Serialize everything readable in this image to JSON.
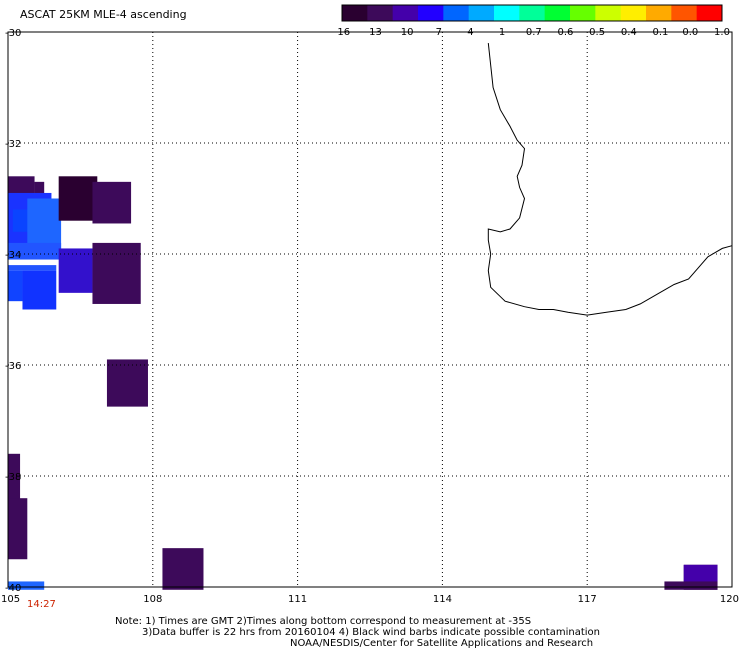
{
  "title": "ASCAT 25KM MLE-4 ascending",
  "colorbar": {
    "colors": [
      "#2a0030",
      "#3d0a5a",
      "#4400aa",
      "#2200ff",
      "#0066ff",
      "#00aaff",
      "#00ffff",
      "#00ff99",
      "#00ff33",
      "#66ff00",
      "#ccff00",
      "#ffee00",
      "#ffaa00",
      "#ff5500",
      "#ff0000"
    ],
    "labels": [
      "-16",
      "-13",
      "-10",
      "-7",
      "-4",
      "-1",
      "-0.7",
      "-0.6",
      "-0.5",
      "-0.4",
      "-0.1",
      "0.0",
      "1.0"
    ]
  },
  "axes": {
    "x_ticks": [
      "105",
      "108",
      "111",
      "114",
      "117",
      "120"
    ],
    "y_ticks": [
      "-30",
      "-32",
      "-34",
      "-36",
      "-38",
      "-40"
    ]
  },
  "time_label": "14:27",
  "notes": {
    "line1": "Note: 1) Times are GMT 2)Times along bottom correspond to measurement at -35S",
    "line2": "3)Data buffer is 22 hrs from 20160104 4) Black wind barbs indicate possible contamination",
    "line3": "NOAA/NESDIS/Center for Satellite Applications and Research"
  },
  "cells": [
    {
      "lon0": 105.0,
      "lat0": -32.6,
      "lon1": 105.55,
      "lat1": -33.3,
      "color": "#3d0a5a"
    },
    {
      "lon0": 105.55,
      "lat0": -32.7,
      "lon1": 105.75,
      "lat1": -33.2,
      "color": "#3d0a5a"
    },
    {
      "lon0": 105.0,
      "lat0": -32.9,
      "lon1": 105.9,
      "lat1": -34.0,
      "color": "#1a33ff"
    },
    {
      "lon0": 105.1,
      "lat0": -33.2,
      "lon1": 105.5,
      "lat1": -33.6,
      "color": "#0a44ff"
    },
    {
      "lon0": 105.4,
      "lat0": -33.0,
      "lon1": 106.1,
      "lat1": -34.0,
      "color": "#1e66ff"
    },
    {
      "lon0": 105.0,
      "lat0": -33.8,
      "lon1": 106.1,
      "lat1": -34.1,
      "color": "#2255ff"
    },
    {
      "lon0": 105.0,
      "lat0": -34.2,
      "lon1": 106.0,
      "lat1": -34.3,
      "color": "#2255ff"
    },
    {
      "lon0": 105.3,
      "lat0": -34.3,
      "lon1": 106.0,
      "lat1": -35.0,
      "color": "#1133ff"
    },
    {
      "lon0": 105.0,
      "lat0": -34.3,
      "lon1": 105.3,
      "lat1": -34.85,
      "color": "#1144ff"
    },
    {
      "lon0": 106.05,
      "lat0": -32.6,
      "lon1": 106.85,
      "lat1": -33.4,
      "color": "#2a0030"
    },
    {
      "lon0": 106.75,
      "lat0": -32.7,
      "lon1": 107.55,
      "lat1": -33.45,
      "color": "#3d0a5a"
    },
    {
      "lon0": 106.05,
      "lat0": -33.9,
      "lon1": 106.75,
      "lat1": -34.7,
      "color": "#3311cc"
    },
    {
      "lon0": 106.75,
      "lat0": -33.8,
      "lon1": 107.75,
      "lat1": -34.9,
      "color": "#3d0a5a"
    },
    {
      "lon0": 107.05,
      "lat0": -35.9,
      "lon1": 107.9,
      "lat1": -36.75,
      "color": "#3d0a5a"
    },
    {
      "lon0": 105.0,
      "lat0": -37.6,
      "lon1": 105.25,
      "lat1": -38.5,
      "color": "#3d0a5a"
    },
    {
      "lon0": 105.0,
      "lat0": -38.4,
      "lon1": 105.4,
      "lat1": -39.5,
      "color": "#3d0a5a"
    },
    {
      "lon0": 105.0,
      "lat0": -39.9,
      "lon1": 105.75,
      "lat1": -40.05,
      "color": "#1e66ff"
    },
    {
      "lon0": 108.2,
      "lat0": -39.3,
      "lon1": 109.05,
      "lat1": -40.05,
      "color": "#3d0a5a"
    },
    {
      "lon0": 119.0,
      "lat0": -39.6,
      "lon1": 119.7,
      "lat1": -40.05,
      "color": "#3d0a5a"
    },
    {
      "lon0": 118.6,
      "lat0": -39.9,
      "lon1": 119.7,
      "lat1": -40.05,
      "color": "#3d0a5a"
    },
    {
      "lon0": 119.0,
      "lat0": -39.6,
      "lon1": 119.7,
      "lat1": -39.9,
      "color": "#4400aa"
    }
  ],
  "coastline": [
    [
      114.95,
      -30.2
    ],
    [
      115.0,
      -30.6
    ],
    [
      115.05,
      -31.0
    ],
    [
      115.2,
      -31.4
    ],
    [
      115.4,
      -31.7
    ],
    [
      115.55,
      -31.95
    ],
    [
      115.7,
      -32.1
    ],
    [
      115.65,
      -32.4
    ],
    [
      115.55,
      -32.6
    ],
    [
      115.6,
      -32.8
    ],
    [
      115.7,
      -33.0
    ],
    [
      115.6,
      -33.35
    ],
    [
      115.4,
      -33.55
    ],
    [
      115.2,
      -33.6
    ],
    [
      114.95,
      -33.55
    ],
    [
      114.95,
      -33.75
    ],
    [
      115.0,
      -34.0
    ],
    [
      114.95,
      -34.3
    ],
    [
      115.0,
      -34.6
    ],
    [
      115.3,
      -34.85
    ],
    [
      115.7,
      -34.95
    ],
    [
      116.0,
      -35.0
    ],
    [
      116.3,
      -35.0
    ],
    [
      116.6,
      -35.05
    ],
    [
      117.0,
      -35.1
    ],
    [
      117.4,
      -35.05
    ],
    [
      117.8,
      -35.0
    ],
    [
      118.1,
      -34.9
    ],
    [
      118.4,
      -34.75
    ],
    [
      118.8,
      -34.55
    ],
    [
      119.1,
      -34.45
    ],
    [
      119.3,
      -34.25
    ],
    [
      119.5,
      -34.05
    ],
    [
      119.8,
      -33.9
    ],
    [
      120.0,
      -33.85
    ]
  ]
}
